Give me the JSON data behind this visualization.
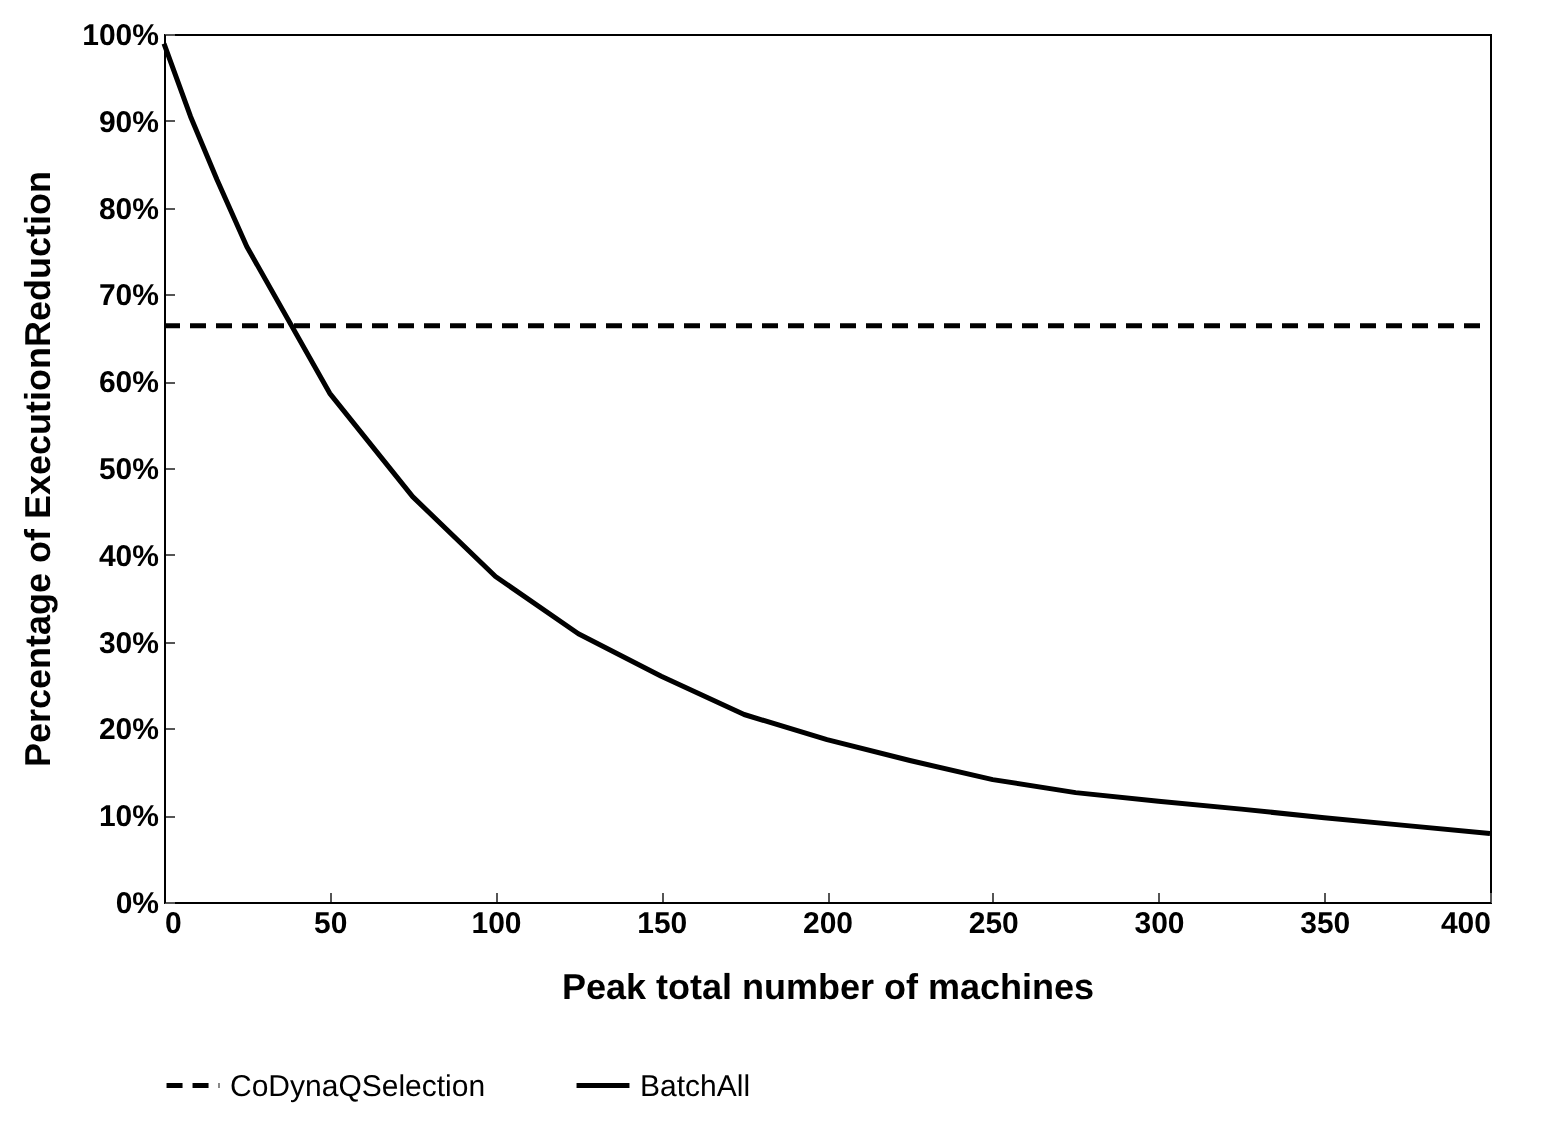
{
  "chart_data": {
    "type": "line",
    "xlabel": "Peak total number of machines",
    "ylabel": "Percentage of ExecutionReduction",
    "xlim": [
      0,
      400
    ],
    "xticks": [
      0,
      50,
      100,
      150,
      200,
      250,
      300,
      350,
      400
    ],
    "ylim": [
      0,
      100
    ],
    "yticks": [
      {
        "value": 0,
        "label": "0%"
      },
      {
        "value": 10,
        "label": "10%"
      },
      {
        "value": 20,
        "label": "20%"
      },
      {
        "value": 30,
        "label": "30%"
      },
      {
        "value": 40,
        "label": "40%"
      },
      {
        "value": 50,
        "label": "50%"
      },
      {
        "value": 60,
        "label": "60%"
      },
      {
        "value": 70,
        "label": "70%"
      },
      {
        "value": 80,
        "label": "80%"
      },
      {
        "value": 90,
        "label": "90%"
      },
      {
        "value": 100,
        "label": "100%"
      }
    ],
    "grid": false,
    "legend": "bottom",
    "marker": "none",
    "series": [
      {
        "name": "CoDynaQSelection",
        "color": "#000000",
        "line_style": "dashed",
        "x": [
          0,
          400
        ],
        "values": [
          66.4,
          66.4
        ]
      },
      {
        "name": "BatchAll",
        "color": "#000000",
        "line_style": "solid",
        "x": [
          0,
          8,
          16,
          25,
          50,
          75,
          100,
          125,
          150,
          175,
          200,
          225,
          250,
          275,
          300,
          325,
          350,
          375,
          400
        ],
        "values": [
          98.9,
          90.5,
          83.2,
          75.5,
          58.6,
          46.7,
          37.5,
          30.9,
          26,
          21.6,
          18.7,
          16.3,
          14.1,
          12.6,
          11.6,
          10.7,
          9.7,
          8.8,
          7.9
        ]
      }
    ]
  }
}
